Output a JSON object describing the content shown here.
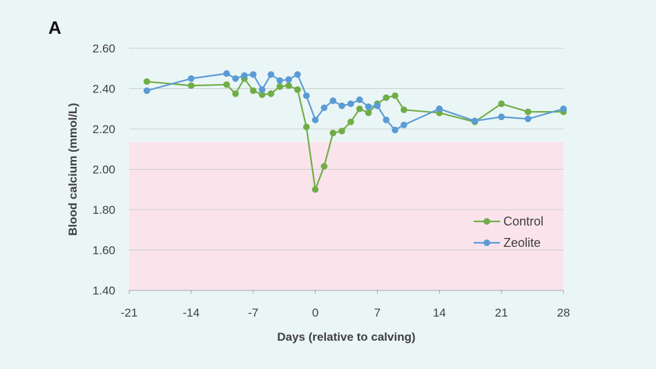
{
  "panel_label": "A",
  "chart_data": {
    "type": "line",
    "title": "",
    "xlabel": "Days (relative to calving)",
    "ylabel": "Blood calcium (mmol/L)",
    "xlim": [
      -21,
      28
    ],
    "ylim": [
      1.4,
      2.6
    ],
    "xticks": [
      -21,
      -14,
      -7,
      0,
      7,
      14,
      21,
      28
    ],
    "xtick_labels": [
      "-21",
      "-14",
      "-7",
      "0",
      "7",
      "14",
      "21",
      "28"
    ],
    "yticks": [
      1.4,
      1.6,
      1.8,
      2.0,
      2.2,
      2.4,
      2.6
    ],
    "ytick_labels": [
      "1.40",
      "1.60",
      "1.80",
      "2.00",
      "2.20",
      "2.40",
      "2.60"
    ],
    "grid": "horizontal",
    "shaded_region": {
      "y_from": 1.4,
      "y_to": 2.135,
      "color": "#fbe3ec"
    },
    "legend": {
      "position": "bottom-right",
      "entries": [
        "Control",
        "Zeolite"
      ]
    },
    "series": [
      {
        "name": "Control",
        "color": "#70ad47",
        "x": [
          -19,
          -14,
          -10,
          -9,
          -8,
          -7,
          -6,
          -5,
          -4,
          -3,
          -2,
          -1,
          0,
          1,
          2,
          3,
          4,
          5,
          6,
          7,
          8,
          9,
          10,
          14,
          18,
          21,
          24,
          28
        ],
        "y": [
          2.435,
          2.415,
          2.42,
          2.375,
          2.45,
          2.39,
          2.37,
          2.375,
          2.41,
          2.415,
          2.395,
          2.21,
          1.9,
          2.015,
          2.18,
          2.19,
          2.235,
          2.3,
          2.28,
          2.325,
          2.355,
          2.365,
          2.295,
          2.28,
          2.235,
          2.325,
          2.285,
          2.285
        ]
      },
      {
        "name": "Zeolite",
        "color": "#5b9bd5",
        "x": [
          -19,
          -14,
          -10,
          -9,
          -8,
          -7,
          -6,
          -5,
          -4,
          -3,
          -2,
          -1,
          0,
          1,
          2,
          3,
          4,
          5,
          6,
          7,
          8,
          9,
          10,
          14,
          18,
          21,
          24,
          28
        ],
        "y": [
          2.39,
          2.45,
          2.475,
          2.45,
          2.465,
          2.47,
          2.395,
          2.47,
          2.44,
          2.445,
          2.47,
          2.365,
          2.245,
          2.305,
          2.34,
          2.315,
          2.325,
          2.345,
          2.31,
          2.315,
          2.245,
          2.195,
          2.22,
          2.3,
          2.24,
          2.26,
          2.25,
          2.3
        ]
      }
    ]
  }
}
